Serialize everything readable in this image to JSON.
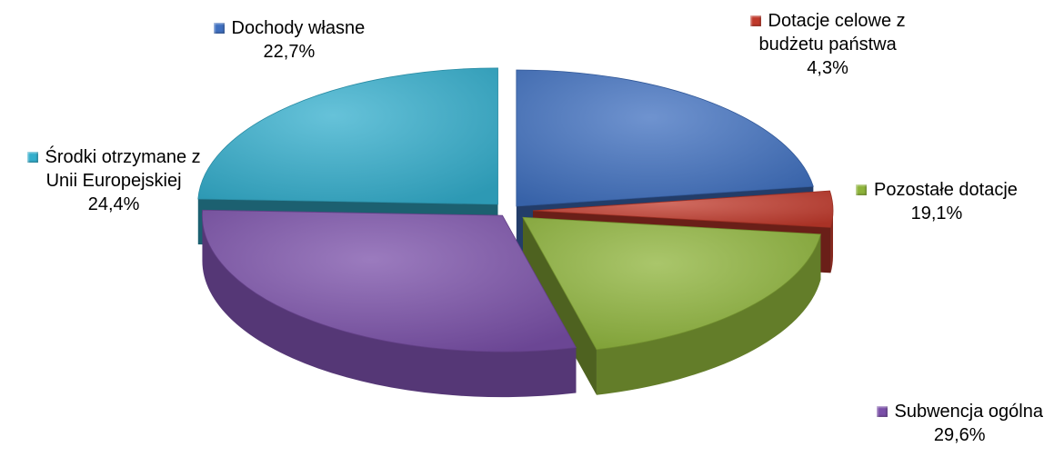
{
  "chart_data": {
    "type": "pie",
    "style": "3d-exploded",
    "legend": "labels-beside-slices",
    "slices": [
      {
        "label_lines": [
          "Dochody własne"
        ],
        "value": 22.7,
        "value_label": "22,7%",
        "color": "#3F6FBF"
      },
      {
        "label_lines": [
          "Dotacje celowe z",
          "budżetu państwa"
        ],
        "value": 4.3,
        "value_label": "4,3%",
        "color": "#C0392B"
      },
      {
        "label_lines": [
          "Pozostałe dotacje"
        ],
        "value": 19.1,
        "value_label": "19,1%",
        "color": "#8DB33A"
      },
      {
        "label_lines": [
          "Subwencja ogólna"
        ],
        "value": 29.6,
        "value_label": "29,6%",
        "color": "#7A4FA8"
      },
      {
        "label_lines": [
          "Środki otrzymane z",
          "Unii Europejskiej"
        ],
        "value": 24.4,
        "value_label": "24,4%",
        "color": "#33AECC"
      }
    ]
  }
}
